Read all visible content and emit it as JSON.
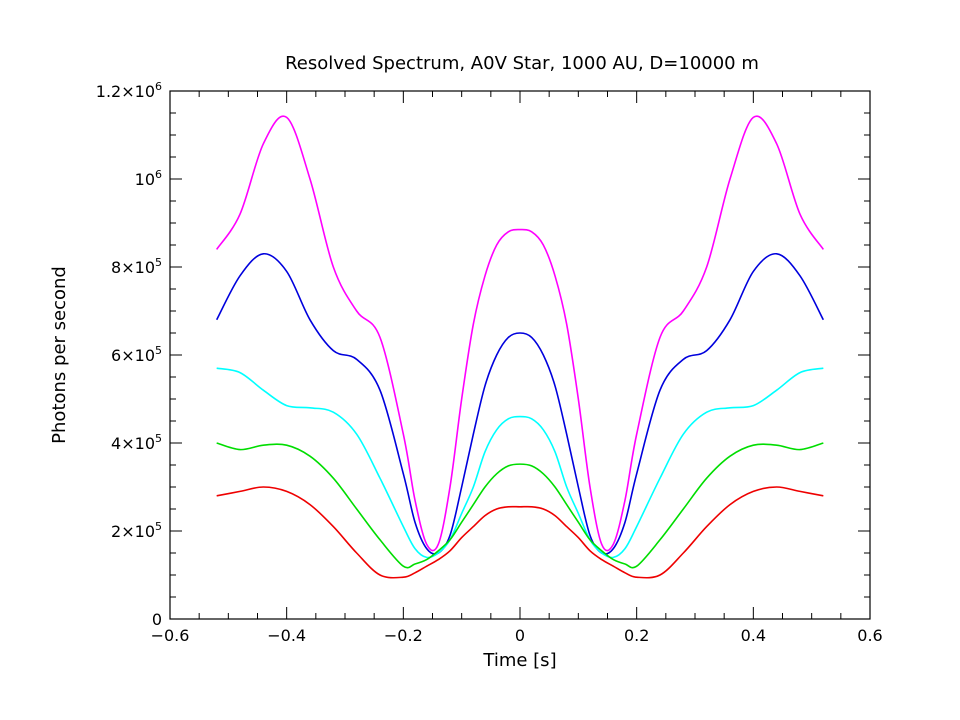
{
  "chart_data": {
    "type": "line",
    "title": "Resolved Spectrum, A0V Star, 1000 AU, D=10000 m",
    "xlabel": "Time [s]",
    "ylabel": "Photons per second",
    "xlim": [
      -0.6,
      0.6
    ],
    "ylim": [
      0,
      1200000
    ],
    "grid": false,
    "legend": "none",
    "x_ticks": [
      {
        "value": -0.6,
        "label": "−0.6"
      },
      {
        "value": -0.4,
        "label": "−0.4"
      },
      {
        "value": -0.2,
        "label": "−0.2"
      },
      {
        "value": 0,
        "label": "0"
      },
      {
        "value": 0.2,
        "label": "0.2"
      },
      {
        "value": 0.4,
        "label": "0.4"
      },
      {
        "value": 0.6,
        "label": "0.6"
      }
    ],
    "y_ticks": [
      {
        "value": 0,
        "label": "0",
        "mant": "",
        "exp": ""
      },
      {
        "value": 200000,
        "label": "2×10⁵",
        "mant": "2×10",
        "exp": "5"
      },
      {
        "value": 400000,
        "label": "4×10⁵",
        "mant": "4×10",
        "exp": "5"
      },
      {
        "value": 600000,
        "label": "6×10⁵",
        "mant": "6×10",
        "exp": "5"
      },
      {
        "value": 800000,
        "label": "8×10⁵",
        "mant": "8×10",
        "exp": "5"
      },
      {
        "value": 1000000,
        "label": "10⁶",
        "mant": "10",
        "exp": "6"
      },
      {
        "value": 1200000,
        "label": "1.2×10⁶",
        "mant": "1.2×10",
        "exp": "6"
      }
    ],
    "x": [
      -0.52,
      -0.48,
      -0.44,
      -0.4,
      -0.36,
      -0.32,
      -0.28,
      -0.24,
      -0.2,
      -0.18,
      -0.16,
      -0.14,
      -0.12,
      -0.1,
      -0.08,
      -0.06,
      -0.04,
      -0.02,
      0,
      0.02,
      0.04,
      0.06,
      0.08,
      0.1,
      0.12,
      0.14,
      0.16,
      0.18,
      0.2,
      0.24,
      0.28,
      0.32,
      0.36,
      0.4,
      0.44,
      0.48,
      0.52
    ],
    "series": [
      {
        "color": "#ff00ff",
        "values": [
          840000,
          920000,
          1080000,
          1140000,
          1000000,
          800000,
          700000,
          640000,
          420000,
          270000,
          170000,
          170000,
          300000,
          500000,
          670000,
          780000,
          850000,
          880000,
          885000,
          880000,
          850000,
          780000,
          670000,
          500000,
          300000,
          170000,
          170000,
          270000,
          420000,
          640000,
          700000,
          800000,
          1000000,
          1140000,
          1080000,
          920000,
          840000
        ]
      },
      {
        "color": "#0000dd",
        "values": [
          680000,
          780000,
          830000,
          790000,
          680000,
          610000,
          590000,
          520000,
          330000,
          220000,
          160000,
          150000,
          190000,
          300000,
          420000,
          530000,
          600000,
          640000,
          650000,
          640000,
          600000,
          530000,
          420000,
          300000,
          190000,
          150000,
          160000,
          220000,
          330000,
          520000,
          590000,
          610000,
          680000,
          790000,
          830000,
          780000,
          680000
        ]
      },
      {
        "color": "#00ffff",
        "values": [
          570000,
          560000,
          520000,
          485000,
          480000,
          470000,
          420000,
          320000,
          210000,
          160000,
          140000,
          150000,
          180000,
          240000,
          300000,
          380000,
          430000,
          455000,
          460000,
          455000,
          430000,
          380000,
          300000,
          240000,
          180000,
          150000,
          140000,
          160000,
          210000,
          320000,
          420000,
          470000,
          480000,
          485000,
          520000,
          560000,
          570000
        ]
      },
      {
        "color": "#00dd00",
        "values": [
          400000,
          385000,
          395000,
          395000,
          370000,
          320000,
          250000,
          180000,
          120000,
          125000,
          135000,
          155000,
          180000,
          220000,
          260000,
          300000,
          330000,
          348000,
          352000,
          348000,
          330000,
          300000,
          260000,
          220000,
          180000,
          155000,
          135000,
          125000,
          120000,
          180000,
          250000,
          320000,
          370000,
          395000,
          395000,
          385000,
          400000
        ]
      },
      {
        "color": "#ee0000",
        "values": [
          280000,
          290000,
          300000,
          290000,
          260000,
          210000,
          150000,
          100000,
          95000,
          105000,
          120000,
          135000,
          155000,
          185000,
          210000,
          235000,
          250000,
          255000,
          255000,
          255000,
          250000,
          235000,
          210000,
          185000,
          155000,
          135000,
          120000,
          105000,
          95000,
          100000,
          150000,
          210000,
          260000,
          290000,
          300000,
          290000,
          280000
        ]
      }
    ]
  }
}
